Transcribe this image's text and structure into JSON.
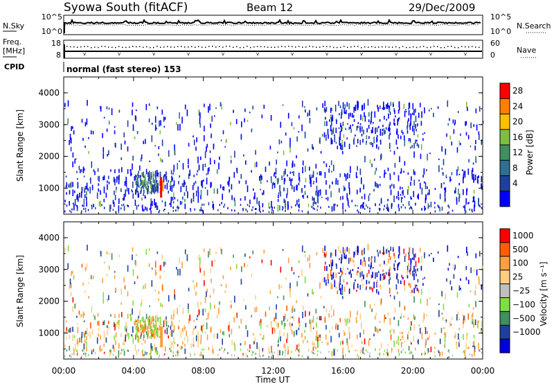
{
  "header": {
    "station": "Syowa South (fitACF)",
    "beam": "Beam 12",
    "date": "29/Dec/2009"
  },
  "nsky_panel": {
    "left_label": "N.Sky",
    "right_label": "N.Search",
    "y_ticks": [
      "10^5",
      "10^0"
    ],
    "right_ticks": [
      "10^5",
      "10^0"
    ]
  },
  "freq_panel": {
    "left_label_1": "Freq.",
    "left_label_2": "[MHz]",
    "right_label": "Nave",
    "y_ticks": [
      "18",
      "8"
    ],
    "right_ticks": [
      "60",
      "0"
    ]
  },
  "cpid": {
    "label": "CPID",
    "value": "normal (fast stereo) 153"
  },
  "x_axis": {
    "label": "Time UT",
    "ticks": [
      "00:00",
      "04:00",
      "08:00",
      "12:00",
      "16:00",
      "20:00",
      "00:00"
    ]
  },
  "colors": {
    "power_scale": [
      "#0000ff",
      "#1f3f9f",
      "#2f6f8f",
      "#3f8f5f",
      "#7fbf3f",
      "#ffbf00",
      "#ff7f00",
      "#ff0000"
    ],
    "velocity_scale": [
      "#ff0000",
      "#ff5f00",
      "#ff9f3f",
      "#ffcf7f",
      "#bfbfbf",
      "#7fdf3f",
      "#3f8f5f",
      "#1f3f9f",
      "#0000df"
    ]
  },
  "chart_data": [
    {
      "type": "heatmap",
      "title": "Power",
      "ylabel": "Slant Range [km]",
      "xlabel": "",
      "x_ticks": [
        "00:00",
        "04:00",
        "08:00",
        "12:00",
        "16:00",
        "20:00",
        "00:00"
      ],
      "y_ticks": [
        "1000",
        "2000",
        "3000",
        "4000"
      ],
      "ylim": [
        180,
        4500
      ],
      "colorbar_label": "Power [dB]",
      "colorbar_ticks": [
        "4",
        "8",
        "12",
        "16",
        "20",
        "24",
        "28"
      ],
      "value_range": [
        0,
        30
      ]
    },
    {
      "type": "heatmap",
      "title": "Velocity",
      "ylabel": "Slant Range [km]",
      "xlabel": "Time UT",
      "x_ticks": [
        "00:00",
        "04:00",
        "08:00",
        "12:00",
        "16:00",
        "20:00",
        "00:00"
      ],
      "y_ticks": [
        "1000",
        "2000",
        "3000",
        "4000"
      ],
      "ylim": [
        180,
        4500
      ],
      "colorbar_label": "Velocity [m s⁻¹]",
      "colorbar_ticks": [
        "1000",
        "500",
        "100",
        "25",
        "−25",
        "−100",
        "−500",
        "−1000"
      ],
      "value_range": [
        -1200,
        1200
      ]
    }
  ]
}
